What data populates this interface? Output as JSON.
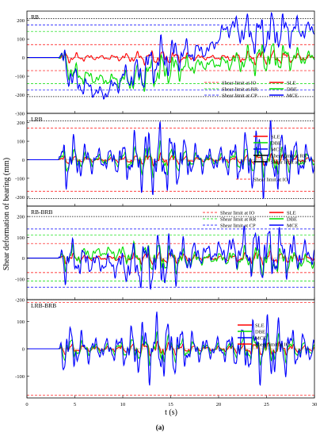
{
  "figure": {
    "ylabel": "Shear deformation of bearing (mm)",
    "xlabel": "t (s)",
    "caption": "(a)"
  },
  "chart_data": [
    {
      "type": "line",
      "title": "RB",
      "xlim": [
        0,
        30
      ],
      "ylim": [
        -300,
        250
      ],
      "xticks": [
        0,
        5,
        10,
        15,
        20,
        25,
        30
      ],
      "yticks": [
        -300,
        -200,
        -100,
        0,
        100,
        200
      ],
      "series": [
        {
          "name": "SLE",
          "color": "#ff0000",
          "amp": 30,
          "drift": [
            [
              0,
              0
            ],
            [
              30,
              0
            ]
          ]
        },
        {
          "name": "DBE",
          "color": "#00dd00",
          "amp": 70,
          "drift": [
            [
              0,
              0
            ],
            [
              3.5,
              0
            ],
            [
              5,
              -90
            ],
            [
              8,
              -120
            ],
            [
              11,
              -120
            ],
            [
              14,
              -70
            ],
            [
              18,
              -40
            ],
            [
              22,
              -20
            ],
            [
              25,
              0
            ],
            [
              30,
              0
            ]
          ]
        },
        {
          "name": "MCE",
          "color": "#0000ff",
          "amp": 90,
          "drift": [
            [
              0,
              0
            ],
            [
              3.5,
              0
            ],
            [
              5,
              -130
            ],
            [
              8,
              -200
            ],
            [
              10,
              -110
            ],
            [
              12,
              -80
            ],
            [
              14,
              0
            ],
            [
              17,
              30
            ],
            [
              19,
              40
            ],
            [
              21,
              170
            ],
            [
              24,
              120
            ],
            [
              26,
              140
            ],
            [
              28,
              150
            ],
            [
              30,
              150
            ]
          ]
        }
      ],
      "limits": [
        {
          "name": "Shear limit at IO",
          "value": 70,
          "color": "#ff0000"
        },
        {
          "name": "Shear limit at RR",
          "value": 140,
          "color": "#00dd00"
        },
        {
          "name": "Shear limit at CP",
          "value": 175,
          "color": "#0000ff"
        },
        {
          "name": "",
          "value": 210,
          "color": "#000000"
        }
      ],
      "legend": [
        "Shear limit at IO",
        "Shear limit at RR",
        "Shear limit at CP",
        "SLE",
        "DBE",
        "MCE"
      ]
    },
    {
      "type": "line",
      "title": "LRB",
      "xlim": [
        0,
        30
      ],
      "ylim": [
        -250,
        250
      ],
      "xticks": [
        0,
        5,
        10,
        15,
        20,
        25,
        30
      ],
      "yticks": [
        -200,
        -100,
        0,
        100,
        200
      ],
      "series": [
        {
          "name": "SLE",
          "color": "#ff0000",
          "amp": 25
        },
        {
          "name": "DBE",
          "color": "#00dd00",
          "amp": 70
        },
        {
          "name": "MCE",
          "color": "#0000ff",
          "amp": 150
        }
      ],
      "limits": [
        {
          "name": "Shear limit at IO",
          "value": 170,
          "color": "#ff0000"
        },
        {
          "name": "",
          "value": 210,
          "color": "#000000"
        }
      ],
      "legend": [
        "SLE",
        "DBE",
        "MCE",
        "Shear limit at IO",
        "Shear limit at RR",
        "Shear limit at CP"
      ]
    },
    {
      "type": "line",
      "title": "RB-BRB",
      "xlim": [
        0,
        30
      ],
      "ylim": [
        -200,
        250
      ],
      "xticks": [
        0,
        5,
        10,
        15,
        20,
        25,
        30
      ],
      "yticks": [
        -200,
        -100,
        0,
        100,
        200
      ],
      "series": [
        {
          "name": "SLE",
          "color": "#ff0000",
          "amp": 25
        },
        {
          "name": "DBE",
          "color": "#00dd00",
          "amp": 60,
          "drift": [
            [
              0,
              0
            ],
            [
              3.5,
              0
            ],
            [
              8,
              30
            ],
            [
              12,
              10
            ],
            [
              16,
              -10
            ],
            [
              20,
              0
            ],
            [
              25,
              -10
            ],
            [
              30,
              -20
            ]
          ]
        },
        {
          "name": "MCE",
          "color": "#0000ff",
          "amp": 110,
          "drift": [
            [
              0,
              0
            ],
            [
              3.5,
              0
            ],
            [
              10,
              -40
            ],
            [
              14,
              -20
            ],
            [
              18,
              20
            ],
            [
              22,
              40
            ],
            [
              25,
              20
            ],
            [
              30,
              20
            ]
          ]
        }
      ],
      "limits": [
        {
          "name": "Shear limit at IO",
          "value": 70,
          "color": "#ff0000"
        },
        {
          "name": "Shear limit at RR",
          "value": 110,
          "color": "#00dd00"
        },
        {
          "name": "Shear limit at CP",
          "value": 140,
          "color": "#0000ff"
        },
        {
          "name": "",
          "value": 200,
          "color": "#000000"
        }
      ],
      "legend": [
        "Shear limit at IO",
        "Shear limit at RR",
        "Shear limit at CP",
        "SLE",
        "DBE",
        "MCE"
      ]
    },
    {
      "type": "line",
      "title": "LRB-BRB",
      "xlim": [
        0,
        30
      ],
      "ylim": [
        -180,
        180
      ],
      "xticks": [
        0,
        5,
        10,
        15,
        20,
        25,
        30
      ],
      "yticks": [
        -100,
        0,
        100
      ],
      "series": [
        {
          "name": "SLE",
          "color": "#ff0000",
          "amp": 20
        },
        {
          "name": "DBE",
          "color": "#00dd00",
          "amp": 45
        },
        {
          "name": "MCE",
          "color": "#0000ff",
          "amp": 95
        }
      ],
      "limits": [
        {
          "name": "Shear limit at IO",
          "value": 170,
          "color": "#ff0000"
        }
      ],
      "legend": [
        "SLE",
        "DBE",
        "MCE",
        "Shear limit at IO"
      ]
    }
  ]
}
